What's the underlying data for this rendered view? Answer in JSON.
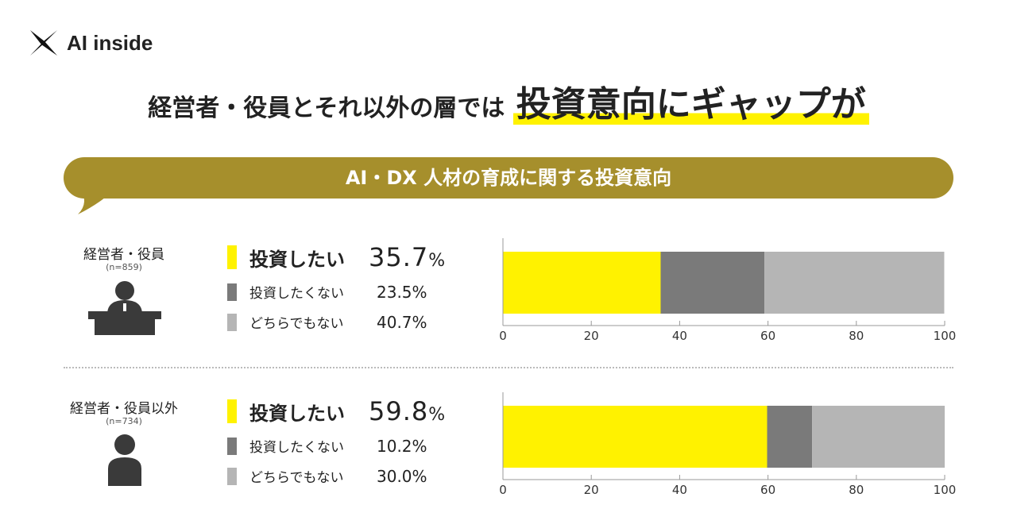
{
  "logo": {
    "text": "AI inside"
  },
  "title": {
    "part1": "経営者・役員とそれ以外の層では",
    "highlight": "投資意向にギャップが"
  },
  "banner": {
    "text": "AI・DX 人材の育成に関する投資意向"
  },
  "colors": {
    "want": "#fff200",
    "not_want": "#7a7a7a",
    "neither": "#b5b5b5",
    "banner": "#a68f2c",
    "icon": "#3a3a3a"
  },
  "groups": [
    {
      "label": "経営者・役員",
      "n": "(n=859)",
      "icon": "executive-at-desk-icon",
      "legend": [
        {
          "label": "投資したい",
          "value": "35.7",
          "unit": "%"
        },
        {
          "label": "投資したくない",
          "value": "23.5%"
        },
        {
          "label": "どちらでもない",
          "value": "40.7%"
        }
      ]
    },
    {
      "label": "経営者・役員以外",
      "n": "(n=734)",
      "icon": "person-icon",
      "legend": [
        {
          "label": "投資したい",
          "value": "59.8",
          "unit": "%"
        },
        {
          "label": "投資したくない",
          "value": "10.2%"
        },
        {
          "label": "どちらでもない",
          "value": "30.0%"
        }
      ]
    }
  ],
  "chart_data": [
    {
      "type": "bar",
      "orientation": "horizontal",
      "stacked": true,
      "categories": [
        "経営者・役員"
      ],
      "series": [
        {
          "name": "投資したい",
          "values": [
            35.7
          ]
        },
        {
          "name": "投資したくない",
          "values": [
            23.5
          ]
        },
        {
          "name": "どちらでもない",
          "values": [
            40.7
          ]
        }
      ],
      "xlim": [
        0,
        100
      ],
      "xticks": [
        "0",
        "20",
        "40",
        "60",
        "80",
        "100"
      ],
      "grid": false
    },
    {
      "type": "bar",
      "orientation": "horizontal",
      "stacked": true,
      "categories": [
        "経営者・役員以外"
      ],
      "series": [
        {
          "name": "投資したい",
          "values": [
            59.8
          ]
        },
        {
          "name": "投資したくない",
          "values": [
            10.2
          ]
        },
        {
          "name": "どちらでもない",
          "values": [
            30.0
          ]
        }
      ],
      "xlim": [
        0,
        100
      ],
      "xticks": [
        "0",
        "20",
        "40",
        "60",
        "80",
        "100"
      ],
      "grid": false
    }
  ]
}
